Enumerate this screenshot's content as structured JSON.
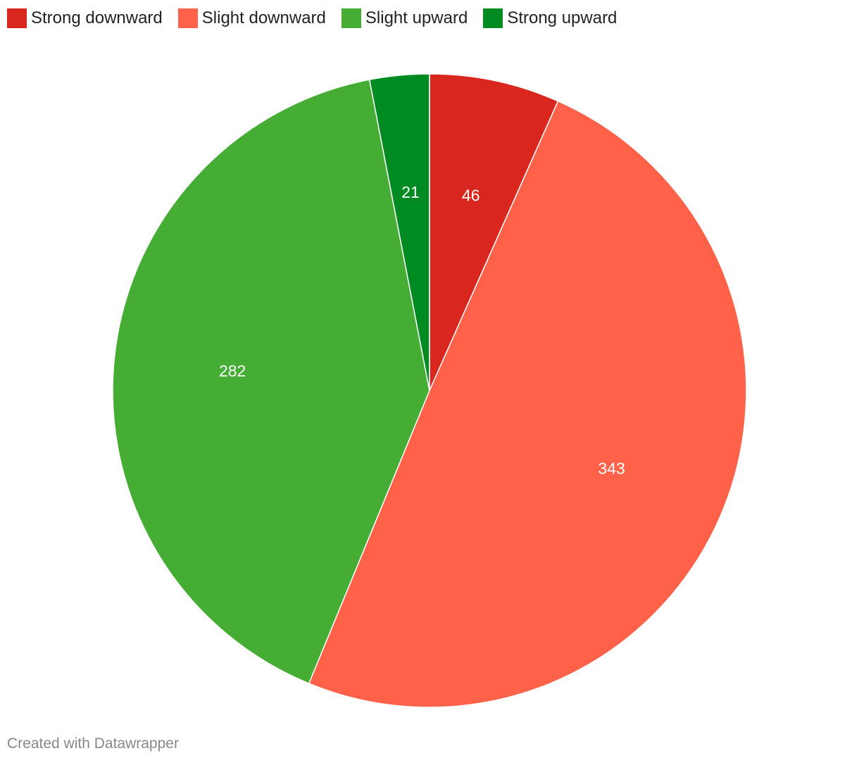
{
  "chart_data": {
    "type": "pie",
    "categories": [
      "Strong downward",
      "Slight downward",
      "Slight upward",
      "Strong upward"
    ],
    "values": [
      46,
      343,
      282,
      21
    ],
    "colors": [
      "#d9261f",
      "#ff6149",
      "#45ac34",
      "#008b22"
    ],
    "legend_position": "top-left",
    "title": ""
  },
  "footer": {
    "credit": "Created with Datawrapper"
  }
}
